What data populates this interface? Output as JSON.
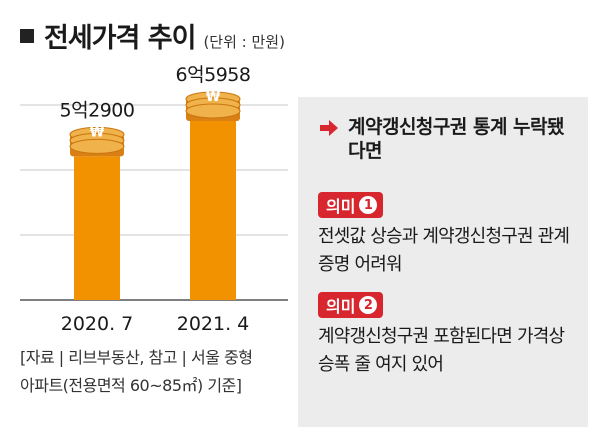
{
  "header": {
    "title": "전세가격 추이",
    "unit": "(단위 : 만원)"
  },
  "chart_data": {
    "type": "bar",
    "categories": [
      "2020. 7",
      "2021. 4"
    ],
    "values": [
      52900,
      65958
    ],
    "data_labels": [
      "5억2900",
      "6억5958"
    ],
    "title": "전세가격 추이",
    "xlabel": "",
    "ylabel": "",
    "ylim": [
      0,
      70000
    ],
    "grid": true,
    "bar_color": "#f39200",
    "coin_color": "#f0b24a"
  },
  "source": {
    "line1": "[자료 | 리브부동산, 참고 | 서울 중형",
    "line2": "아파트(전용면적 60~85㎡) 기준]"
  },
  "panel": {
    "heading": "계약갱신청구권 통계 누락됐다면",
    "accent_color": "#d8262e",
    "points": [
      {
        "badge": "의미",
        "number": "1",
        "text": "전셋값 상승과 계약갱신청구권 관계 증명 어려워"
      },
      {
        "badge": "의미",
        "number": "2",
        "text": "계약갱신청구권 포함된다면 가격상승폭 줄 여지 있어"
      }
    ]
  }
}
